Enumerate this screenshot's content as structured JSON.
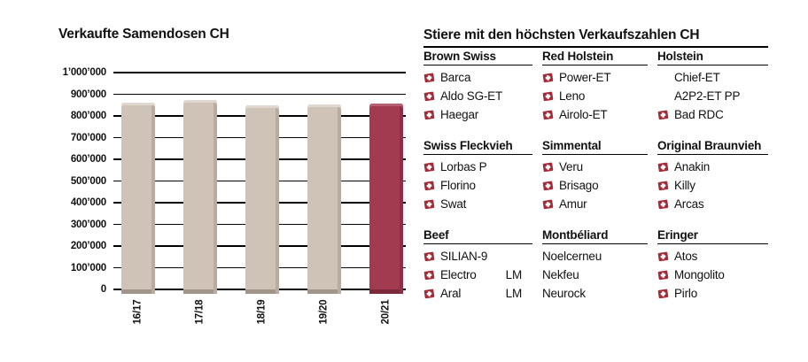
{
  "chart_data": {
    "type": "bar",
    "title": "Verkaufte Samendosen CH",
    "categories": [
      "16/17",
      "17/18",
      "18/19",
      "19/20",
      "20/21"
    ],
    "values": [
      860000,
      873000,
      848000,
      852000,
      856000
    ],
    "xlabel": "",
    "ylabel": "",
    "ylim": [
      0,
      1000000
    ],
    "ytick_interval": 100000,
    "ytick_labels": [
      "0",
      "100’000",
      "200’000",
      "300’000",
      "400’000",
      "500’000",
      "600’000",
      "700’000",
      "800’000",
      "900’000",
      "1’000’000"
    ],
    "grid": true,
    "legend": "none",
    "highlight_index": 4,
    "bar_color_default": "#cfc3b8",
    "bar_color_highlight": "#a23a50"
  },
  "table": {
    "title": "Stiere mit den höchsten Verkaufszahlen CH",
    "groups": [
      {
        "columns": [
          {
            "header": "Brown Swiss",
            "items": [
              {
                "flag": true,
                "name": "Barca"
              },
              {
                "flag": true,
                "name": "Aldo SG-ET"
              },
              {
                "flag": true,
                "name": "Haegar"
              }
            ]
          },
          {
            "header": "Red Holstein",
            "items": [
              {
                "flag": true,
                "name": "Power-ET"
              },
              {
                "flag": true,
                "name": "Leno"
              },
              {
                "flag": true,
                "name": "Airolo-ET"
              }
            ]
          },
          {
            "header": "Holstein",
            "items": [
              {
                "flag": false,
                "indent": true,
                "name": "Chief-ET"
              },
              {
                "flag": false,
                "indent": true,
                "name": "A2P2-ET PP"
              },
              {
                "flag": true,
                "name": "Bad RDC"
              }
            ]
          }
        ]
      },
      {
        "columns": [
          {
            "header": "Swiss Fleckvieh",
            "items": [
              {
                "flag": true,
                "name": "Lorbas P"
              },
              {
                "flag": true,
                "name": "Florino"
              },
              {
                "flag": true,
                "name": "Swat"
              }
            ]
          },
          {
            "header": "Simmental",
            "items": [
              {
                "flag": true,
                "name": "Veru"
              },
              {
                "flag": true,
                "name": "Brisago"
              },
              {
                "flag": true,
                "name": "Amur"
              }
            ]
          },
          {
            "header": "Original Braunvieh",
            "items": [
              {
                "flag": true,
                "name": "Anakin"
              },
              {
                "flag": true,
                "name": "Killy"
              },
              {
                "flag": true,
                "name": "Arcas"
              }
            ]
          }
        ]
      },
      {
        "columns": [
          {
            "header": "Beef",
            "items": [
              {
                "flag": true,
                "name": "SILIAN-9"
              },
              {
                "flag": true,
                "name": "Electro",
                "suffix": "LM"
              },
              {
                "flag": true,
                "name": "Aral",
                "suffix": "LM"
              }
            ]
          },
          {
            "header": "Montbéliard",
            "items": [
              {
                "flag": false,
                "name": "Noelcerneu"
              },
              {
                "flag": false,
                "name": "Nekfeu"
              },
              {
                "flag": false,
                "name": "Neurock"
              }
            ]
          },
          {
            "header": "Eringer",
            "items": [
              {
                "flag": true,
                "name": "Atos"
              },
              {
                "flag": true,
                "name": "Mongolito"
              },
              {
                "flag": true,
                "name": "Pirlo"
              }
            ]
          }
        ]
      }
    ]
  },
  "colors": {
    "text": "#111111",
    "rule": "#000000",
    "bar_default": "#cfc3b8",
    "bar_default_light": "#e0d8d0",
    "bar_default_dark": "#b9aba0",
    "bar_highlight": "#a23a50",
    "bar_highlight_light": "#b75e70",
    "bar_highlight_dark": "#8a2f44",
    "flag_red": "#a62b38"
  },
  "icons": {
    "swiss_flag": "swiss-flag-icon"
  }
}
